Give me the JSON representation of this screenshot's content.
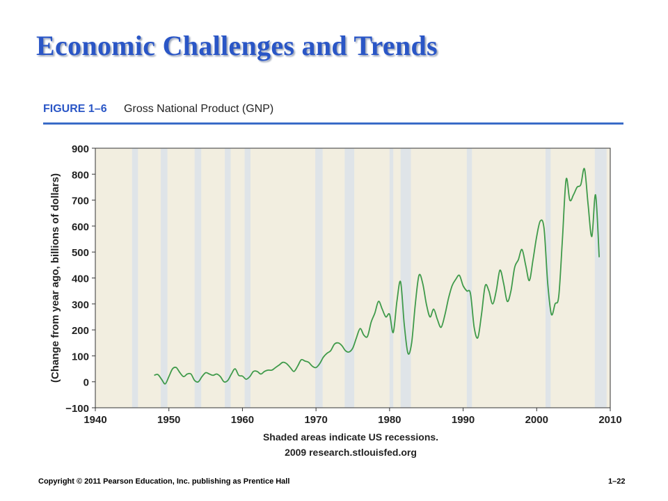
{
  "slide": {
    "title": "Economic Challenges and Trends",
    "figure_label": "FIGURE 1–6",
    "figure_title": "Gross National Product (GNP)",
    "footer_left": "Copyright © 2011 Pearson Education, Inc. publishing as Prentice Hall",
    "footer_right": "1–22"
  },
  "colors": {
    "title": "#2a56c6",
    "rule": "#3a6cc8",
    "plot_bg": "#f2eee0",
    "recession": "#dfe4e8",
    "line": "#3f9a4a"
  },
  "chart_data": {
    "type": "line",
    "title": "",
    "ylabel": "(Change from year ago, billions of dollars)",
    "xlabel_lines": [
      "Shaded areas indicate US recessions.",
      "2009 research.stlouisfed.org"
    ],
    "xlim": [
      1940,
      2010
    ],
    "ylim": [
      -100,
      900
    ],
    "xticks": [
      1940,
      1950,
      1960,
      1970,
      1980,
      1990,
      2000,
      2010
    ],
    "yticks": [
      -100,
      0,
      100,
      200,
      300,
      400,
      500,
      600,
      700,
      800,
      900
    ],
    "grid": false,
    "recessions": [
      [
        1945.0,
        1945.8
      ],
      [
        1948.9,
        1949.8
      ],
      [
        1953.5,
        1954.4
      ],
      [
        1957.6,
        1958.4
      ],
      [
        1960.3,
        1961.1
      ],
      [
        1969.9,
        1970.9
      ],
      [
        1973.9,
        1975.2
      ],
      [
        1980.0,
        1980.5
      ],
      [
        1981.5,
        1982.9
      ],
      [
        1990.5,
        1991.2
      ],
      [
        2001.2,
        2001.9
      ],
      [
        2007.9,
        2009.5
      ]
    ],
    "series": [
      {
        "x": [
          1948.0,
          1948.5,
          1949.0,
          1949.5,
          1950.0,
          1950.5,
          1951.0,
          1951.5,
          1952.0,
          1952.5,
          1953.0,
          1953.5,
          1954.0,
          1954.5,
          1955.0,
          1955.5,
          1956.0,
          1956.5,
          1957.0,
          1957.5,
          1958.0,
          1958.5,
          1959.0,
          1959.5,
          1960.0,
          1960.5,
          1961.0,
          1961.5,
          1962.0,
          1962.5,
          1963.0,
          1963.5,
          1964.0,
          1964.5,
          1965.0,
          1965.5,
          1966.0,
          1966.5,
          1967.0,
          1967.5,
          1968.0,
          1968.5,
          1969.0,
          1969.5,
          1970.0,
          1970.5,
          1971.0,
          1971.5,
          1972.0,
          1972.5,
          1973.0,
          1973.5,
          1974.0,
          1974.5,
          1975.0,
          1975.5,
          1976.0,
          1976.5,
          1977.0,
          1977.5,
          1978.0,
          1978.5,
          1979.0,
          1979.5,
          1980.0,
          1980.5,
          1981.0,
          1981.5,
          1982.0,
          1982.5,
          1983.0,
          1983.5,
          1984.0,
          1984.5,
          1985.0,
          1985.5,
          1986.0,
          1986.5,
          1987.0,
          1987.5,
          1988.0,
          1988.5,
          1989.0,
          1989.5,
          1990.0,
          1990.5,
          1991.0,
          1991.5,
          1992.0,
          1992.5,
          1993.0,
          1993.5,
          1994.0,
          1994.5,
          1995.0,
          1995.5,
          1996.0,
          1996.5,
          1997.0,
          1997.5,
          1998.0,
          1998.5,
          1999.0,
          1999.5,
          2000.0,
          2000.5,
          2001.0,
          2001.5,
          2002.0,
          2002.5,
          2003.0,
          2003.5,
          2004.0,
          2004.5,
          2005.0,
          2005.5,
          2006.0,
          2006.5,
          2007.0,
          2007.5,
          2008.0,
          2008.5
        ],
        "values": [
          25,
          28,
          10,
          -8,
          20,
          50,
          55,
          35,
          20,
          30,
          30,
          5,
          0,
          20,
          35,
          30,
          25,
          30,
          20,
          0,
          5,
          30,
          50,
          25,
          22,
          10,
          20,
          40,
          40,
          30,
          40,
          45,
          45,
          55,
          65,
          75,
          70,
          55,
          40,
          60,
          85,
          80,
          75,
          60,
          55,
          70,
          95,
          110,
          120,
          145,
          150,
          140,
          120,
          115,
          130,
          170,
          205,
          180,
          175,
          230,
          265,
          310,
          280,
          250,
          260,
          190,
          310,
          385,
          220,
          110,
          150,
          300,
          410,
          380,
          300,
          250,
          280,
          240,
          210,
          255,
          320,
          370,
          395,
          410,
          370,
          350,
          340,
          210,
          170,
          260,
          370,
          350,
          300,
          350,
          430,
          380,
          310,
          350,
          440,
          470,
          510,
          450,
          390,
          470,
          560,
          620,
          590,
          380,
          260,
          300,
          330,
          550,
          780,
          700,
          720,
          750,
          760,
          820,
          680,
          560,
          720,
          480
        ]
      }
    ]
  }
}
